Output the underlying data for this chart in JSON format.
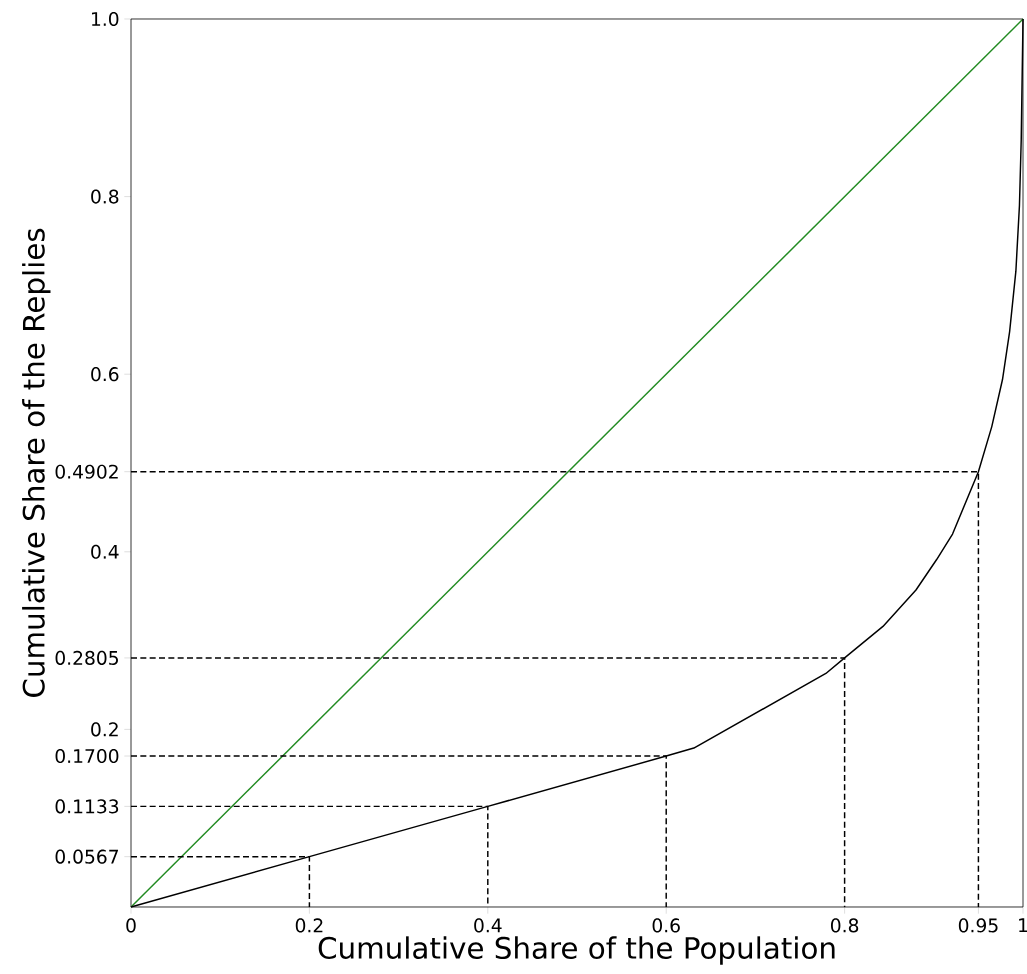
{
  "chart_data": {
    "type": "line",
    "xlabel": "Cumulative Share of the Population",
    "ylabel": "Cumulative Share of the Replies",
    "xlim": [
      0,
      1
    ],
    "ylim": [
      0,
      1
    ],
    "xticks": [
      0,
      0.2,
      0.4,
      0.6,
      0.8,
      0.95,
      1
    ],
    "yticks": [
      0.0567,
      0.1133,
      {
        "value": 0.17,
        "label": "0.1700"
      },
      0.2,
      0.2805,
      0.4,
      0.4902,
      0.6,
      0.8,
      {
        "value": 1.0,
        "label": "1.0"
      }
    ],
    "series": [
      {
        "color": "#228b22",
        "line_style": "solid",
        "x": [
          0,
          1
        ],
        "values": [
          0,
          1
        ]
      },
      {
        "type": "line",
        "color": "#000000",
        "line_style": "solid",
        "x": [
          0,
          0.2,
          0.4,
          0.6,
          0.631,
          0.779,
          0.8,
          0.843,
          0.88,
          0.903,
          0.921,
          0.95,
          0.965,
          0.977,
          0.985,
          0.992,
          0.996,
          0.998,
          1
        ],
        "values": [
          0,
          0.0567,
          0.1133,
          0.17,
          0.179,
          0.263,
          0.2805,
          0.316,
          0.357,
          0.391,
          0.42,
          0.4902,
          0.541,
          0.594,
          0.648,
          0.716,
          0.79,
          0.864,
          1
        ]
      },
      {
        "type": "line",
        "color": "#000000",
        "line_style": "dashed",
        "x": [
          0,
          0.2,
          0.2
        ],
        "values": [
          0.0567,
          0.0567,
          0
        ]
      },
      {
        "type": "line",
        "color": "#000000",
        "line_style": "dashed",
        "x": [
          0,
          0.4,
          0.4
        ],
        "values": [
          0.1133,
          0.1133,
          0
        ]
      },
      {
        "type": "line",
        "color": "#000000",
        "line_style": "dashed",
        "x": [
          0,
          0.6,
          0.6
        ],
        "values": [
          0.17,
          0.17,
          0
        ]
      },
      {
        "type": "line",
        "color": "#000000",
        "line_style": "dashed",
        "x": [
          0,
          0.8,
          0.8
        ],
        "values": [
          0.2805,
          0.2805,
          0
        ]
      },
      {
        "type": "line",
        "color": "#000000",
        "line_style": "dashed",
        "x": [
          0,
          0.95,
          0.95
        ],
        "values": [
          0.4902,
          0.4902,
          0
        ]
      }
    ]
  }
}
